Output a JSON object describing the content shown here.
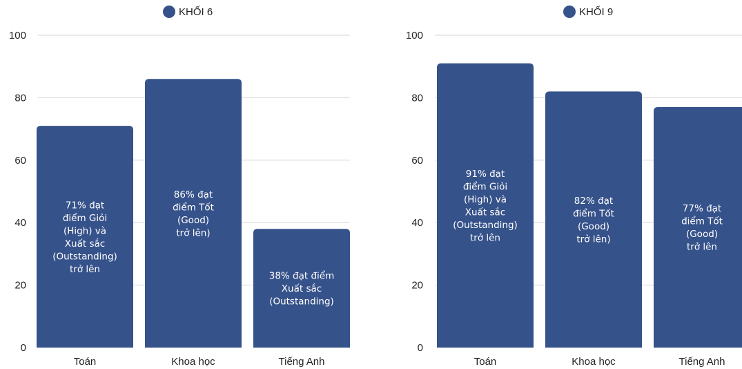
{
  "colors": {
    "bar": "#36528A",
    "grid": "#d6d6d6",
    "text": "#222222",
    "bar_label": "#ffffff"
  },
  "chart_data": [
    {
      "type": "bar",
      "title": "",
      "xlabel": "",
      "ylabel": "",
      "ylim": [
        0,
        100
      ],
      "yticks": [
        0,
        20,
        40,
        60,
        80,
        100
      ],
      "grid": true,
      "legend_position": "top-center",
      "categories": [
        "Toán",
        "Khoa học",
        "Tiếng Anh"
      ],
      "series": [
        {
          "name": "KHỐI 6",
          "values": [
            71,
            86,
            38
          ],
          "data_labels": [
            [
              "71%  đạt",
              "điểm Giỏi",
              "(High) và",
              "Xuất sắc",
              "(Outstanding)",
              "trở lên"
            ],
            [
              "86% đạt",
              "điểm Tốt",
              "(Good)",
              "trở lên)"
            ],
            [
              "38% đạt điểm",
              "Xuất sắc",
              "(Outstanding)"
            ]
          ]
        }
      ]
    },
    {
      "type": "bar",
      "title": "",
      "xlabel": "",
      "ylabel": "",
      "ylim": [
        0,
        100
      ],
      "yticks": [
        0,
        20,
        40,
        60,
        80,
        100
      ],
      "grid": true,
      "legend_position": "top-center",
      "categories": [
        "Toán",
        "Khoa học",
        "Tiếng Anh"
      ],
      "series": [
        {
          "name": "KHỐI 9",
          "values": [
            91,
            82,
            77
          ],
          "data_labels": [
            [
              "91%  đạt",
              "điểm Giỏi",
              "(High) và",
              "Xuất sắc",
              "(Outstanding)",
              "trở lên"
            ],
            [
              "82% đạt",
              "điểm Tốt",
              "(Good)",
              "trở lên)"
            ],
            [
              "77% đạt",
              "điểm Tốt",
              "(Good)",
              "trở lên"
            ]
          ]
        }
      ]
    }
  ]
}
